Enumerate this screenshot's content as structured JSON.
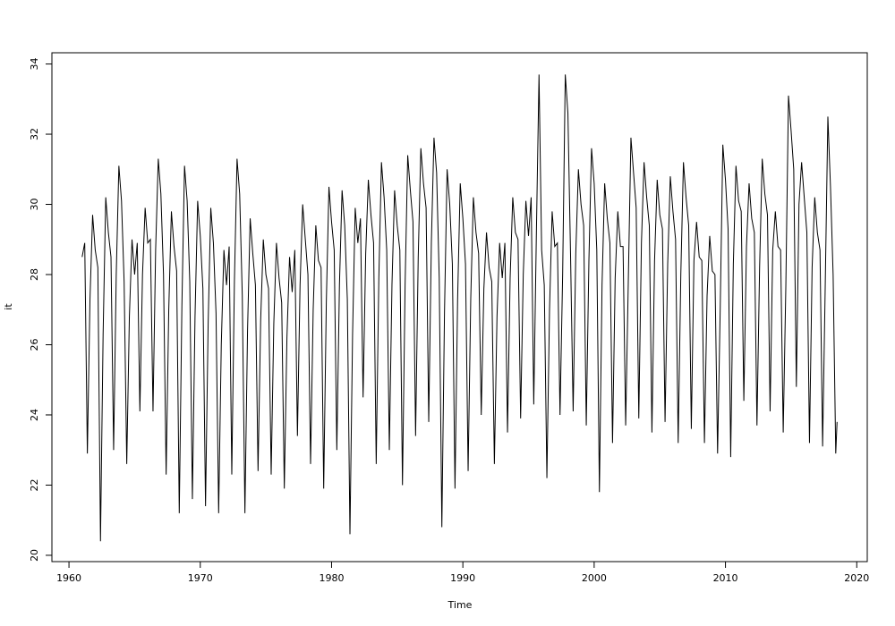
{
  "chart_data": {
    "type": "line",
    "x_label": "Time",
    "y_label": "it",
    "color": "#000000",
    "xlim": [
      1958.7,
      2020.8
    ],
    "ylim": [
      19.82,
      34.32
    ],
    "xticks": [
      1960,
      1970,
      1980,
      1990,
      2000,
      2010,
      2020
    ],
    "yticks": [
      20,
      22,
      24,
      26,
      28,
      30,
      32,
      34
    ],
    "x": [
      1961,
      1961.2,
      1961.4,
      1961.6,
      1961.8,
      1962,
      1962.2,
      1962.4,
      1962.6,
      1962.8,
      1963,
      1963.2,
      1963.4,
      1963.6,
      1963.8,
      1964,
      1964.2,
      1964.4,
      1964.6,
      1964.8,
      1965,
      1965.2,
      1965.4,
      1965.6,
      1965.8,
      1966,
      1966.2,
      1966.4,
      1966.6,
      1966.8,
      1967,
      1967.2,
      1967.4,
      1967.6,
      1967.8,
      1968,
      1968.2,
      1968.4,
      1968.6,
      1968.8,
      1969,
      1969.2,
      1969.4,
      1969.6,
      1969.8,
      1970,
      1970.2,
      1970.4,
      1970.6,
      1970.8,
      1971,
      1971.2,
      1971.4,
      1971.6,
      1971.8,
      1972,
      1972.2,
      1972.4,
      1972.6,
      1972.8,
      1973,
      1973.2,
      1973.4,
      1973.6,
      1973.8,
      1974,
      1974.2,
      1974.4,
      1974.6,
      1974.8,
      1975,
      1975.2,
      1975.4,
      1975.6,
      1975.8,
      1976,
      1976.2,
      1976.4,
      1976.6,
      1976.8,
      1977,
      1977.2,
      1977.4,
      1977.6,
      1977.8,
      1978,
      1978.2,
      1978.4,
      1978.6,
      1978.8,
      1979,
      1979.2,
      1979.4,
      1979.6,
      1979.8,
      1980,
      1980.2,
      1980.4,
      1980.6,
      1980.8,
      1981,
      1981.2,
      1981.4,
      1981.6,
      1981.8,
      1982,
      1982.2,
      1982.4,
      1982.6,
      1982.8,
      1983,
      1983.2,
      1983.4,
      1983.6,
      1983.8,
      1984,
      1984.2,
      1984.4,
      1984.6,
      1984.8,
      1985,
      1985.2,
      1985.4,
      1985.6,
      1985.8,
      1986,
      1986.2,
      1986.4,
      1986.6,
      1986.8,
      1987,
      1987.2,
      1987.4,
      1987.6,
      1987.8,
      1988,
      1988.2,
      1988.4,
      1988.6,
      1988.8,
      1989,
      1989.2,
      1989.4,
      1989.6,
      1989.8,
      1990,
      1990.2,
      1990.4,
      1990.6,
      1990.8,
      1991,
      1991.2,
      1991.4,
      1991.6,
      1991.8,
      1992,
      1992.2,
      1992.4,
      1992.6,
      1992.8,
      1993,
      1993.2,
      1993.4,
      1993.6,
      1993.8,
      1994,
      1994.2,
      1994.4,
      1994.6,
      1994.8,
      1995,
      1995.2,
      1995.4,
      1995.6,
      1995.8,
      1996,
      1996.2,
      1996.4,
      1996.6,
      1996.8,
      1997,
      1997.2,
      1997.4,
      1997.6,
      1997.8,
      1998,
      1998.2,
      1998.4,
      1998.6,
      1998.8,
      1999,
      1999.2,
      1999.4,
      1999.6,
      1999.8,
      2000,
      2000.2,
      2000.4,
      2000.6,
      2000.8,
      2001,
      2001.2,
      2001.4,
      2001.6,
      2001.8,
      2002,
      2002.2,
      2002.4,
      2002.6,
      2002.8,
      2003,
      2003.2,
      2003.4,
      2003.6,
      2003.8,
      2004,
      2004.2,
      2004.4,
      2004.6,
      2004.8,
      2005,
      2005.2,
      2005.4,
      2005.6,
      2005.8,
      2006,
      2006.2,
      2006.4,
      2006.6,
      2006.8,
      2007,
      2007.2,
      2007.4,
      2007.6,
      2007.8,
      2008,
      2008.2,
      2008.4,
      2008.6,
      2008.8,
      2009,
      2009.2,
      2009.4,
      2009.6,
      2009.8,
      2010,
      2010.2,
      2010.4,
      2010.6,
      2010.8,
      2011,
      2011.2,
      2011.4,
      2011.6,
      2011.8,
      2012,
      2012.2,
      2012.4,
      2012.6,
      2012.8,
      2013,
      2013.2,
      2013.4,
      2013.6,
      2013.8,
      2014,
      2014.2,
      2014.4,
      2014.6,
      2014.8,
      2015,
      2015.2,
      2015.4,
      2015.6,
      2015.8,
      2016,
      2016.2,
      2016.4,
      2016.6,
      2016.8,
      2017,
      2017.2,
      2017.4,
      2017.6,
      2017.8,
      2018,
      2018.2,
      2018.4,
      2018.5
    ],
    "values": [
      28.5,
      28.9,
      22.9,
      27.3,
      29.7,
      28.7,
      28.2,
      20.4,
      26.3,
      30.2,
      29.2,
      28.5,
      23.0,
      28.0,
      31.1,
      30.1,
      27.8,
      22.6,
      26.8,
      29.0,
      28.0,
      28.9,
      24.1,
      28.0,
      29.9,
      28.9,
      29.0,
      24.1,
      28.7,
      31.3,
      30.3,
      28.0,
      22.3,
      27.0,
      29.8,
      28.8,
      28.1,
      21.2,
      27.1,
      31.1,
      30.1,
      27.8,
      21.6,
      26.8,
      30.1,
      29.1,
      27.6,
      21.4,
      26.6,
      29.9,
      28.9,
      26.9,
      21.2,
      26.0,
      28.7,
      27.7,
      28.8,
      22.3,
      27.8,
      31.3,
      30.3,
      27.4,
      21.2,
      26.4,
      29.6,
      28.6,
      27.7,
      22.4,
      26.7,
      29.0,
      28.0,
      27.6,
      22.3,
      26.6,
      28.9,
      27.9,
      27.2,
      21.9,
      26.2,
      28.5,
      27.5,
      28.7,
      23.4,
      27.7,
      30.0,
      29.0,
      28.0,
      22.6,
      27.0,
      29.4,
      28.4,
      28.2,
      21.9,
      27.2,
      30.5,
      29.5,
      28.7,
      23.0,
      27.7,
      30.4,
      29.4,
      27.3,
      20.6,
      26.3,
      29.9,
      28.9,
      29.6,
      24.5,
      28.6,
      30.7,
      29.7,
      28.9,
      22.6,
      27.9,
      31.2,
      30.2,
      28.7,
      23.0,
      27.7,
      30.4,
      29.4,
      28.7,
      22.0,
      27.7,
      31.4,
      30.4,
      29.5,
      23.4,
      28.5,
      31.6,
      30.6,
      29.9,
      23.8,
      28.9,
      31.9,
      30.9,
      27.9,
      20.8,
      26.9,
      31.0,
      30.0,
      28.3,
      21.9,
      27.3,
      30.6,
      29.6,
      28.3,
      22.4,
      27.3,
      30.2,
      29.2,
      28.6,
      24.0,
      27.6,
      29.2,
      28.2,
      27.8,
      22.6,
      26.8,
      28.9,
      27.9,
      28.9,
      23.5,
      27.9,
      30.2,
      29.2,
      29.0,
      23.9,
      28.0,
      30.1,
      29.1,
      30.2,
      24.3,
      29.2,
      33.7,
      28.7,
      27.7,
      22.2,
      27.0,
      29.8,
      28.8,
      28.9,
      24.0,
      28.0,
      33.7,
      32.6,
      28.6,
      24.1,
      28.6,
      31.0,
      30.0,
      29.4,
      23.7,
      28.4,
      31.6,
      30.6,
      28.7,
      21.8,
      27.7,
      30.6,
      29.6,
      28.9,
      23.2,
      27.9,
      29.8,
      28.8,
      28.8,
      23.7,
      27.8,
      31.9,
      30.9,
      29.9,
      23.9,
      28.9,
      31.2,
      30.2,
      29.4,
      23.5,
      28.4,
      30.7,
      29.7,
      29.3,
      23.8,
      28.3,
      30.8,
      29.8,
      29.0,
      23.2,
      28.0,
      31.2,
      30.2,
      29.4,
      23.6,
      28.4,
      29.5,
      28.5,
      28.4,
      23.2,
      27.4,
      29.1,
      28.1,
      28.0,
      22.9,
      27.0,
      31.7,
      30.7,
      29.3,
      22.8,
      28.3,
      31.1,
      30.1,
      29.8,
      24.4,
      28.8,
      30.6,
      29.6,
      29.2,
      23.7,
      28.2,
      31.3,
      30.3,
      29.7,
      24.1,
      28.7,
      29.8,
      28.8,
      28.7,
      23.5,
      27.7,
      33.1,
      32.1,
      31.0,
      24.8,
      30.0,
      31.2,
      30.2,
      29.2,
      23.2,
      28.2,
      30.2,
      29.2,
      28.7,
      23.1,
      27.7,
      32.5,
      30.5,
      28.0,
      22.9,
      23.8
    ]
  }
}
